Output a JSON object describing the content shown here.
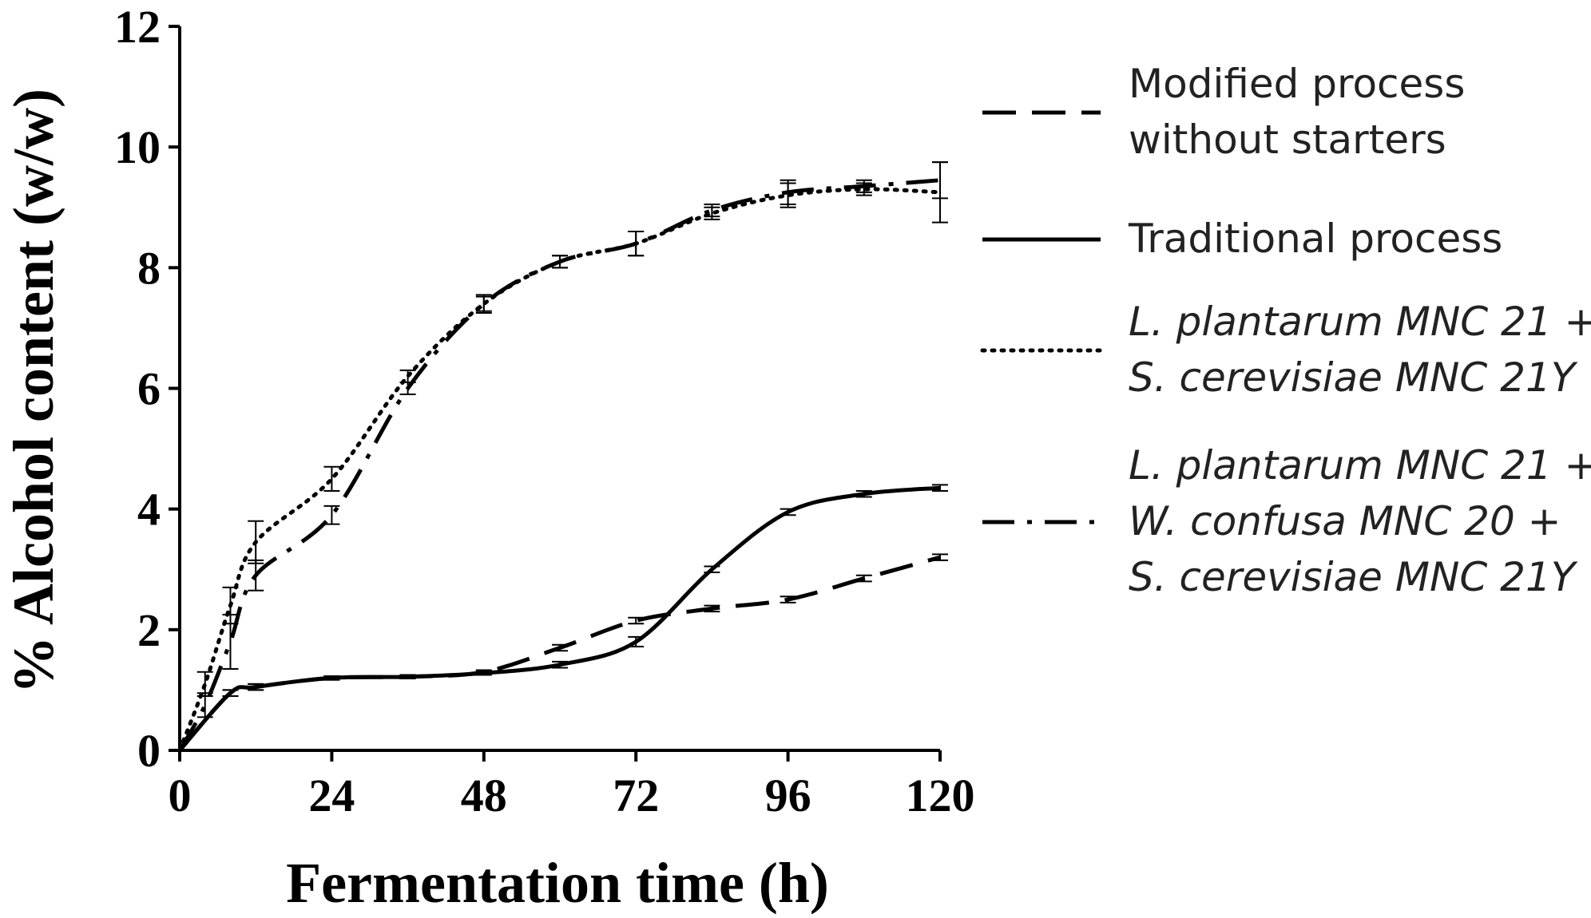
{
  "chart_data": {
    "type": "line",
    "xlabel": "Fermentation time (h)",
    "ylabel": "% Alcohol content (w/w)",
    "xlim": [
      0,
      120
    ],
    "ylim": [
      0,
      12
    ],
    "xticks": [
      "0",
      "24",
      "48",
      "72",
      "96",
      "120"
    ],
    "yticks": [
      "0",
      "2",
      "4",
      "6",
      "8",
      "10",
      "12"
    ],
    "grid": false,
    "legend_position": "right",
    "series": [
      {
        "name": "Modified process without starters",
        "legend_lines": [
          "Modified process",
          "without starters"
        ],
        "style": "dashed",
        "x": [
          0,
          8,
          12,
          24,
          36,
          48,
          60,
          72,
          84,
          96,
          108,
          120
        ],
        "y": [
          0,
          0.95,
          1.05,
          1.2,
          1.22,
          1.3,
          1.7,
          2.15,
          2.35,
          2.5,
          2.85,
          3.2
        ],
        "error": [
          0,
          0.05,
          0.05,
          0.03,
          0.03,
          0.03,
          0.05,
          0.05,
          0.05,
          0.05,
          0.05,
          0.05
        ]
      },
      {
        "name": "Traditional process",
        "legend_lines": [
          "Traditional process"
        ],
        "style": "solid",
        "x": [
          0,
          8,
          12,
          24,
          36,
          48,
          60,
          72,
          84,
          96,
          108,
          120
        ],
        "y": [
          0,
          0.95,
          1.05,
          1.2,
          1.22,
          1.28,
          1.42,
          1.8,
          3.0,
          3.95,
          4.25,
          4.35
        ],
        "error": [
          0,
          0.05,
          0.05,
          0.03,
          0.03,
          0.03,
          0.05,
          0.08,
          0.05,
          0.05,
          0.05,
          0.05
        ]
      },
      {
        "name": "L. plantarum MNC 21 + S. cerevisiae MNC 21Y",
        "legend_lines": [
          "L. plantarum MNC 21 +",
          "S. cerevisiae MNC 21Y"
        ],
        "style": "dotted",
        "x": [
          0,
          4,
          8,
          12,
          24,
          36,
          48,
          60,
          72,
          84,
          96,
          108,
          120
        ],
        "y": [
          0,
          1.1,
          2.4,
          3.45,
          4.5,
          6.2,
          7.4,
          8.1,
          8.4,
          8.9,
          9.2,
          9.3,
          9.25
        ],
        "error": [
          0,
          0.2,
          0.3,
          0.35,
          0.2,
          0.1,
          0.12,
          0.1,
          0.2,
          0.1,
          0.2,
          0.1,
          0.5
        ]
      },
      {
        "name": "L. plantarum MNC 21 + W. confusa MNC 20 + S. cerevisiae MNC 21Y",
        "legend_lines": [
          "L. plantarum MNC 21 +",
          "W. confusa MNC 20 +",
          "S. cerevisiae MNC 21Y"
        ],
        "style": "dashdot",
        "x": [
          0,
          4,
          8,
          12,
          24,
          36,
          48,
          60,
          72,
          84,
          96,
          108,
          120
        ],
        "y": [
          0,
          0.75,
          1.8,
          2.9,
          3.9,
          6.0,
          7.4,
          8.1,
          8.4,
          8.95,
          9.25,
          9.35,
          9.45
        ],
        "error": [
          0,
          0.2,
          0.45,
          0.25,
          0.15,
          0.1,
          0.15,
          0.1,
          0.2,
          0.1,
          0.2,
          0.1,
          0.3
        ]
      }
    ]
  }
}
